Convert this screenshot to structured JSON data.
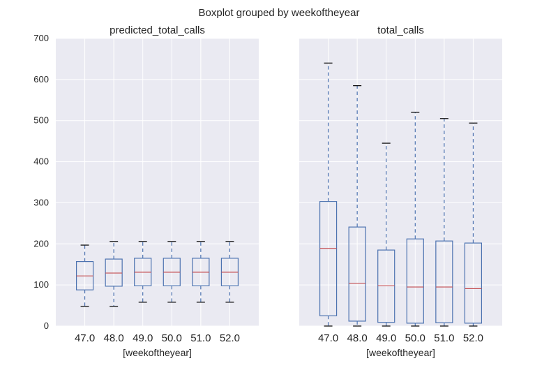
{
  "figure": {
    "suptitle": "Boxplot grouped by weekoftheyear"
  },
  "colors": {
    "panel_bg": "#EAEAF2",
    "grid": "#FFFFFF",
    "box": "#4C72B0",
    "median": "#C44E52",
    "cap": "#000000",
    "text": "#262626"
  },
  "chart_data": [
    {
      "type": "box",
      "title": "predicted_total_calls",
      "xlabel": "[weekoftheyear]",
      "categories": [
        "47.0",
        "48.0",
        "49.0",
        "50.0",
        "51.0",
        "52.0"
      ],
      "ylim": [
        0,
        700
      ],
      "yticks": [
        "0",
        "100",
        "200",
        "300",
        "400",
        "500",
        "600",
        "700"
      ],
      "show_yticks": true,
      "grid": true,
      "boxes": [
        {
          "whislo": 48,
          "q1": 88,
          "med": 122,
          "q3": 157,
          "whishi": 197
        },
        {
          "whislo": 48,
          "q1": 97,
          "med": 129,
          "q3": 163,
          "whishi": 206
        },
        {
          "whislo": 58,
          "q1": 98,
          "med": 131,
          "q3": 165,
          "whishi": 206
        },
        {
          "whislo": 58,
          "q1": 98,
          "med": 131,
          "q3": 165,
          "whishi": 206
        },
        {
          "whislo": 58,
          "q1": 98,
          "med": 131,
          "q3": 165,
          "whishi": 206
        },
        {
          "whislo": 58,
          "q1": 98,
          "med": 131,
          "q3": 165,
          "whishi": 206
        }
      ]
    },
    {
      "type": "box",
      "title": "total_calls",
      "xlabel": "[weekoftheyear]",
      "categories": [
        "47.0",
        "48.0",
        "49.0",
        "50.0",
        "51.0",
        "52.0"
      ],
      "ylim": [
        0,
        700
      ],
      "yticks": [
        "0",
        "100",
        "200",
        "300",
        "400",
        "500",
        "600",
        "700"
      ],
      "show_yticks": false,
      "grid": true,
      "boxes": [
        {
          "whislo": 0,
          "q1": 25,
          "med": 189,
          "q3": 303,
          "whishi": 640
        },
        {
          "whislo": 0,
          "q1": 12,
          "med": 104,
          "q3": 241,
          "whishi": 585
        },
        {
          "whislo": 0,
          "q1": 9,
          "med": 98,
          "q3": 185,
          "whishi": 445
        },
        {
          "whislo": 0,
          "q1": 7,
          "med": 95,
          "q3": 212,
          "whishi": 520
        },
        {
          "whislo": 0,
          "q1": 8,
          "med": 95,
          "q3": 207,
          "whishi": 505
        },
        {
          "whislo": 0,
          "q1": 7,
          "med": 91,
          "q3": 202,
          "whishi": 494
        }
      ]
    }
  ]
}
